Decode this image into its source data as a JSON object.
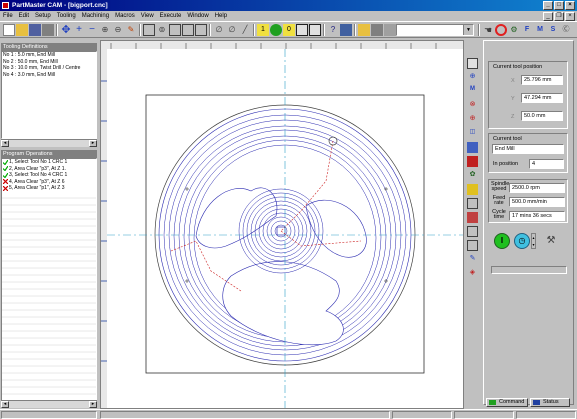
{
  "window": {
    "title": "PartMaster CAM - [bigport.cnc]"
  },
  "menu": [
    "File",
    "Edit",
    "Setup",
    "Tooling",
    "Machining",
    "Macros",
    "View",
    "Execute",
    "Window",
    "Help"
  ],
  "toolbar": {
    "combo_value": ""
  },
  "tooling": {
    "header": "Tooling Definitions",
    "items": [
      "No 1 : 5.0 mm, End Mill",
      "No 2 : 50.0 mm, End Mill",
      "No 3 : 10.0 mm, Twist Drill / Centre",
      "No 4 : 3.0 mm, End Mill"
    ]
  },
  "operations": {
    "header": "Program Operations",
    "items": [
      {
        "label": "1, Select Tool No 1 CRC 1",
        "icon": "check-mill-icon"
      },
      {
        "label": "2, Area Clear \"p3\", At Z 1.",
        "icon": "check-area-icon"
      },
      {
        "label": "3, Select Tool No 4 CRC 1",
        "icon": "check-mill-icon"
      },
      {
        "label": "4, Area Clear \"p3\", At Z 6",
        "icon": "cross-area-icon"
      },
      {
        "label": "5, Area Clear \"p1\", At Z 3",
        "icon": "cross-area-icon"
      }
    ]
  },
  "position": {
    "label": "Current tool position",
    "x_label": "X",
    "x": "25.796 mm",
    "y_label": "Y",
    "y": "47.294 mm",
    "z_label": "Z",
    "z": "50.0 mm"
  },
  "tool": {
    "label": "Current tool",
    "name": "End Mill",
    "in_position_label": "In position",
    "in_position": "4"
  },
  "feeds": {
    "spindle_label": "Spindle speed",
    "spindle": "2500.0 rpm",
    "feed_label": "Feed rate",
    "feed": "500.0 mm/min",
    "cycle_label": "Cycle time",
    "cycle": "17 mins 36 secs"
  },
  "tabs": {
    "command": "Command",
    "status": "Status"
  },
  "colors": {
    "toolpath": "#2a2ab0",
    "rapid": "#cc2020",
    "centerline": "#30a0c8",
    "title": "#000080"
  }
}
